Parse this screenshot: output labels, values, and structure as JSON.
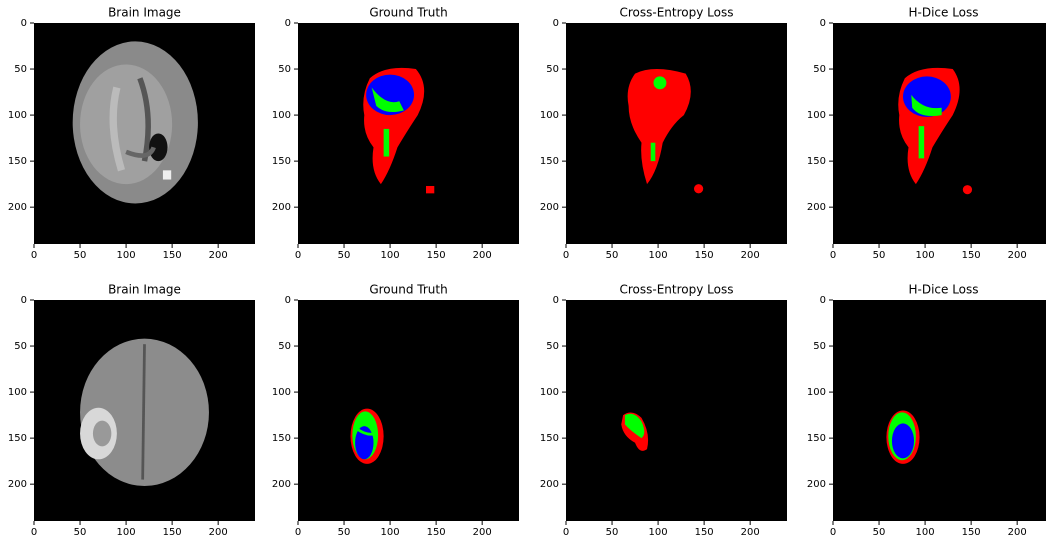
{
  "panels": [
    {
      "title": "Brain Image",
      "xlim": [
        0,
        240
      ],
      "ylim": [
        240,
        0
      ],
      "xticks": [
        0,
        50,
        100,
        150,
        200
      ],
      "yticks": [
        0,
        50,
        100,
        150,
        200
      ]
    },
    {
      "title": "Ground Truth",
      "xlim": [
        0,
        240
      ],
      "ylim": [
        240,
        0
      ],
      "xticks": [
        0,
        50,
        100,
        150,
        200
      ],
      "yticks": [
        0,
        50,
        100,
        150,
        200
      ]
    },
    {
      "title": "Cross-Entropy Loss",
      "xlim": [
        0,
        240
      ],
      "ylim": [
        240,
        0
      ],
      "xticks": [
        0,
        50,
        100,
        150,
        200
      ],
      "yticks": [
        0,
        50,
        100,
        150,
        200
      ]
    },
    {
      "title": "H-Dice Loss",
      "xlim": [
        0,
        240
      ],
      "ylim": [
        240,
        0
      ],
      "xticks": [
        0,
        50,
        100,
        150,
        200
      ],
      "yticks": [
        0,
        50,
        100,
        150,
        200
      ]
    },
    {
      "title": "Brain Image",
      "xlim": [
        0,
        240
      ],
      "ylim": [
        240,
        0
      ],
      "xticks": [
        0,
        50,
        100,
        150,
        200
      ],
      "yticks": [
        0,
        50,
        100,
        150,
        200
      ]
    },
    {
      "title": "Ground Truth",
      "xlim": [
        0,
        240
      ],
      "ylim": [
        240,
        0
      ],
      "xticks": [
        0,
        50,
        100,
        150,
        200
      ],
      "yticks": [
        0,
        50,
        100,
        150,
        200
      ]
    },
    {
      "title": "Cross-Entropy Loss",
      "xlim": [
        0,
        240
      ],
      "ylim": [
        240,
        0
      ],
      "xticks": [
        0,
        50,
        100,
        150,
        200
      ],
      "yticks": [
        0,
        50,
        100,
        150,
        200
      ]
    },
    {
      "title": "H-Dice Loss",
      "xlim": [
        0,
        240
      ],
      "ylim": [
        240,
        0
      ],
      "xticks": [
        0,
        50,
        100,
        150,
        200
      ],
      "yticks": [
        0,
        50,
        100,
        150,
        200
      ]
    }
  ]
}
